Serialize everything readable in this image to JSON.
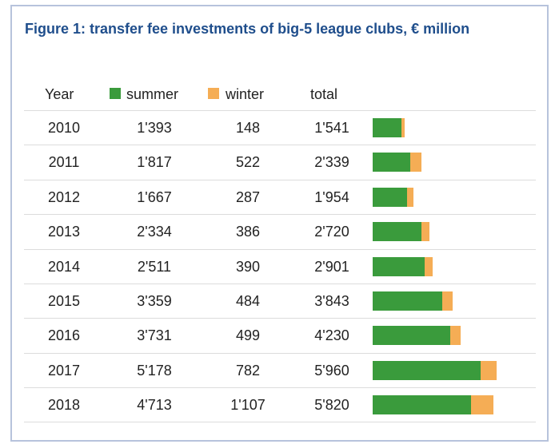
{
  "title": "Figure 1: transfer fee investments of big-5 league clubs, € million",
  "colors": {
    "summer": "#3a9b3c",
    "winter": "#f5ad55",
    "title": "#1f4e8c",
    "frame": "#b7c3dc"
  },
  "chart_data": {
    "type": "table",
    "title": "Figure 1: transfer fee investments of big-5 league clubs, € million",
    "columns": [
      "Year",
      "summer",
      "winter",
      "total"
    ],
    "rows": [
      {
        "year": "2010",
        "summer": "1'393",
        "winter": "148",
        "total": "1'541",
        "summer_value": 1393,
        "winter_value": 148
      },
      {
        "year": "2011",
        "summer": "1'817",
        "winter": "522",
        "total": "2'339",
        "summer_value": 1817,
        "winter_value": 522
      },
      {
        "year": "2012",
        "summer": "1'667",
        "winter": "287",
        "total": "1'954",
        "summer_value": 1667,
        "winter_value": 287
      },
      {
        "year": "2013",
        "summer": "2'334",
        "winter": "386",
        "total": "2'720",
        "summer_value": 2334,
        "winter_value": 386
      },
      {
        "year": "2014",
        "summer": "2'511",
        "winter": "390",
        "total": "2'901",
        "summer_value": 2511,
        "winter_value": 390
      },
      {
        "year": "2015",
        "summer": "3'359",
        "winter": "484",
        "total": "3'843",
        "summer_value": 3359,
        "winter_value": 484
      },
      {
        "year": "2016",
        "summer": "3'731",
        "winter": "499",
        "total": "4'230",
        "summer_value": 3731,
        "winter_value": 499
      },
      {
        "year": "2017",
        "summer": "5'178",
        "winter": "782",
        "total": "5'960",
        "summer_value": 5178,
        "winter_value": 782
      },
      {
        "year": "2018",
        "summer": "4'713",
        "winter": "1'107",
        "total": "5'820",
        "summer_value": 4713,
        "winter_value": 1107
      }
    ]
  }
}
